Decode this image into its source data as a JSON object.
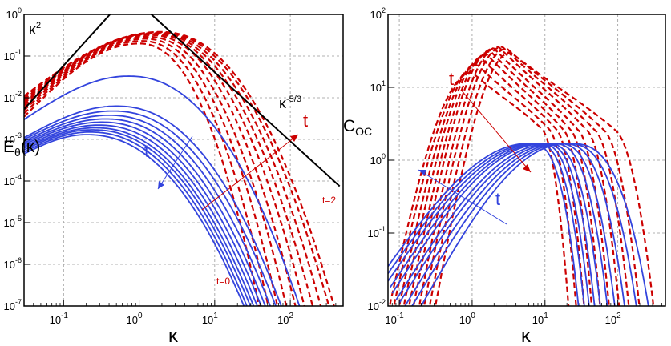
{
  "colors": {
    "red": "#cc0000",
    "blue": "#3344dd",
    "black": "#000000",
    "grid": "#999999"
  },
  "chart_data": [
    {
      "type": "line",
      "xscale": "log",
      "yscale": "log",
      "xlim": [
        0.03,
        500
      ],
      "ylim": [
        1e-07,
        1
      ],
      "xticks": [
        0.1,
        1,
        10,
        100
      ],
      "yticks": [
        1e-07,
        1e-06,
        1e-05,
        0.0001,
        0.001,
        0.01,
        0.1,
        1
      ],
      "xtick_labels": [
        [
          "10",
          "-1"
        ],
        [
          "10",
          "0"
        ],
        [
          "10",
          "1"
        ],
        [
          "10",
          "2"
        ]
      ],
      "ytick_labels": [
        [
          "10",
          "-7"
        ],
        [
          "10",
          "-6"
        ],
        [
          "10",
          "-5"
        ],
        [
          "10",
          "-4"
        ],
        [
          "10",
          "-3"
        ],
        [
          "10",
          "-2"
        ],
        [
          "10",
          "-1"
        ],
        [
          "10",
          "0"
        ]
      ],
      "xlabel": "κ",
      "ylabel": {
        "main": "E",
        "sub": "θ",
        "tail": "(κ)"
      },
      "grid": true,
      "annotations": {
        "slope_low": [
          "κ",
          "2"
        ],
        "slope_high": [
          "κ",
          "-5/3"
        ],
        "red_t": "t",
        "blue_t": "t",
        "t0": "t=0",
        "t2": "t=2"
      },
      "reference_lines": [
        {
          "name": "κ^2",
          "points": [
            [
              0.03,
              0.0053
            ],
            [
              0.45,
              1.2
            ]
          ]
        },
        {
          "name": "κ^-5/3",
          "points": [
            [
              1.3,
              1.2
            ],
            [
              450,
              7.5e-05
            ]
          ]
        }
      ],
      "red_series": [
        {
          "peak_k": 1.0,
          "peak_v": 0.2,
          "y_lo": 0.0035,
          "k_end": 45
        },
        {
          "peak_k": 1.1,
          "peak_v": 0.23,
          "y_lo": 0.0042,
          "k_end": 60
        },
        {
          "peak_k": 1.2,
          "peak_v": 0.26,
          "y_lo": 0.005,
          "k_end": 80
        },
        {
          "peak_k": 1.3,
          "peak_v": 0.29,
          "y_lo": 0.0058,
          "k_end": 105
        },
        {
          "peak_k": 1.4,
          "peak_v": 0.32,
          "y_lo": 0.0066,
          "k_end": 140
        },
        {
          "peak_k": 1.5,
          "peak_v": 0.34,
          "y_lo": 0.0074,
          "k_end": 185
        },
        {
          "peak_k": 1.6,
          "peak_v": 0.35,
          "y_lo": 0.0082,
          "k_end": 240
        },
        {
          "peak_k": 1.7,
          "peak_v": 0.36,
          "y_lo": 0.009,
          "k_end": 310
        },
        {
          "peak_k": 1.8,
          "peak_v": 0.37,
          "y_lo": 0.01,
          "k_end": 400
        },
        {
          "peak_k": 1.9,
          "peak_v": 0.38,
          "y_lo": 0.011,
          "k_end": 470
        }
      ],
      "blue_series": [
        {
          "peak_k": 0.72,
          "peak_v": 0.033,
          "y_lo": 0.003,
          "k_end": 170
        },
        {
          "peak_k": 0.5,
          "peak_v": 0.0063,
          "y_lo": 0.0011,
          "k_end": 100
        },
        {
          "peak_k": 0.45,
          "peak_v": 0.0048,
          "y_lo": 0.001,
          "k_end": 85
        },
        {
          "peak_k": 0.4,
          "peak_v": 0.0038,
          "y_lo": 0.0009,
          "k_end": 72
        },
        {
          "peak_k": 0.36,
          "peak_v": 0.0031,
          "y_lo": 0.00082,
          "k_end": 62
        },
        {
          "peak_k": 0.32,
          "peak_v": 0.0026,
          "y_lo": 0.00075,
          "k_end": 55
        },
        {
          "peak_k": 0.29,
          "peak_v": 0.0022,
          "y_lo": 0.00068,
          "k_end": 49
        },
        {
          "peak_k": 0.26,
          "peak_v": 0.0019,
          "y_lo": 0.00062,
          "k_end": 44
        },
        {
          "peak_k": 0.24,
          "peak_v": 0.0017,
          "y_lo": 0.00056,
          "k_end": 40
        },
        {
          "peak_k": 0.22,
          "peak_v": 0.0015,
          "y_lo": 0.0005,
          "k_end": 36
        },
        {
          "peak_k": 0.2,
          "peak_v": 0.0013,
          "y_lo": 0.00045,
          "k_end": 33
        }
      ]
    },
    {
      "type": "line",
      "xscale": "log",
      "yscale": "log",
      "xlim": [
        0.07,
        450
      ],
      "ylim": [
        0.01,
        100
      ],
      "xticks": [
        0.1,
        1,
        10,
        100
      ],
      "yticks": [
        0.01,
        0.1,
        1,
        10,
        100
      ],
      "xtick_labels": [
        [
          "10",
          "-1"
        ],
        [
          "10",
          "0"
        ],
        [
          "10",
          "1"
        ],
        [
          "10",
          "2"
        ]
      ],
      "ytick_labels": [
        [
          "10",
          "-2"
        ],
        [
          "10",
          "-1"
        ],
        [
          "10",
          "0"
        ],
        [
          "10",
          "1"
        ],
        [
          "10",
          "2"
        ]
      ],
      "xlabel": "κ",
      "ylabel": {
        "main": "C",
        "sub": "OC"
      },
      "grid": true,
      "annotations": {
        "red_t": "t",
        "blue_t": "t"
      },
      "red_series": [
        {
          "k_start": 0.07,
          "peak_k": 1.0,
          "peak_v": 16,
          "k_end": 22
        },
        {
          "k_start": 0.08,
          "peak_k": 1.2,
          "peak_v": 20,
          "k_end": 28
        },
        {
          "k_start": 0.095,
          "peak_k": 1.4,
          "peak_v": 24,
          "k_end": 36
        },
        {
          "k_start": 0.11,
          "peak_k": 1.6,
          "peak_v": 28,
          "k_end": 46
        },
        {
          "k_start": 0.13,
          "peak_k": 1.8,
          "peak_v": 31,
          "k_end": 60
        },
        {
          "k_start": 0.15,
          "peak_k": 2.0,
          "peak_v": 34,
          "k_end": 80
        },
        {
          "k_start": 0.18,
          "peak_k": 2.3,
          "peak_v": 36,
          "k_end": 110
        },
        {
          "k_start": 0.21,
          "peak_k": 2.6,
          "peak_v": 36,
          "k_end": 150
        },
        {
          "k_start": 0.25,
          "peak_k": 3.0,
          "peak_v": 34,
          "k_end": 210
        },
        {
          "k_start": 0.3,
          "peak_k": 3.4,
          "peak_v": 30,
          "k_end": 330
        }
      ],
      "blue_series": [
        {
          "k_start": 0.07,
          "y_start": 0.035,
          "k_plat": 6,
          "plat_v": 1.7,
          "k_end": 30
        },
        {
          "k_start": 0.07,
          "y_start": 0.028,
          "k_plat": 7,
          "plat_v": 1.7,
          "k_end": 36
        },
        {
          "k_start": 0.07,
          "y_start": 0.022,
          "k_plat": 8,
          "plat_v": 1.7,
          "k_end": 42
        },
        {
          "k_start": 0.075,
          "y_start": 0.018,
          "k_plat": 9,
          "plat_v": 1.7,
          "k_end": 50
        },
        {
          "k_start": 0.08,
          "y_start": 0.015,
          "k_plat": 10,
          "plat_v": 1.7,
          "k_end": 60
        },
        {
          "k_start": 0.09,
          "y_start": 0.012,
          "k_plat": 12,
          "plat_v": 1.7,
          "k_end": 75
        },
        {
          "k_start": 0.1,
          "y_start": 0.011,
          "k_plat": 14,
          "plat_v": 1.7,
          "k_end": 95
        },
        {
          "k_start": 0.12,
          "y_start": 0.01,
          "k_plat": 16,
          "plat_v": 1.7,
          "k_end": 130
        },
        {
          "k_start": 0.15,
          "y_start": 0.01,
          "k_plat": 18,
          "plat_v": 1.7,
          "k_end": 190
        },
        {
          "k_start": 0.2,
          "y_start": 0.01,
          "k_plat": 20,
          "plat_v": 1.7,
          "k_end": 280
        }
      ]
    }
  ]
}
